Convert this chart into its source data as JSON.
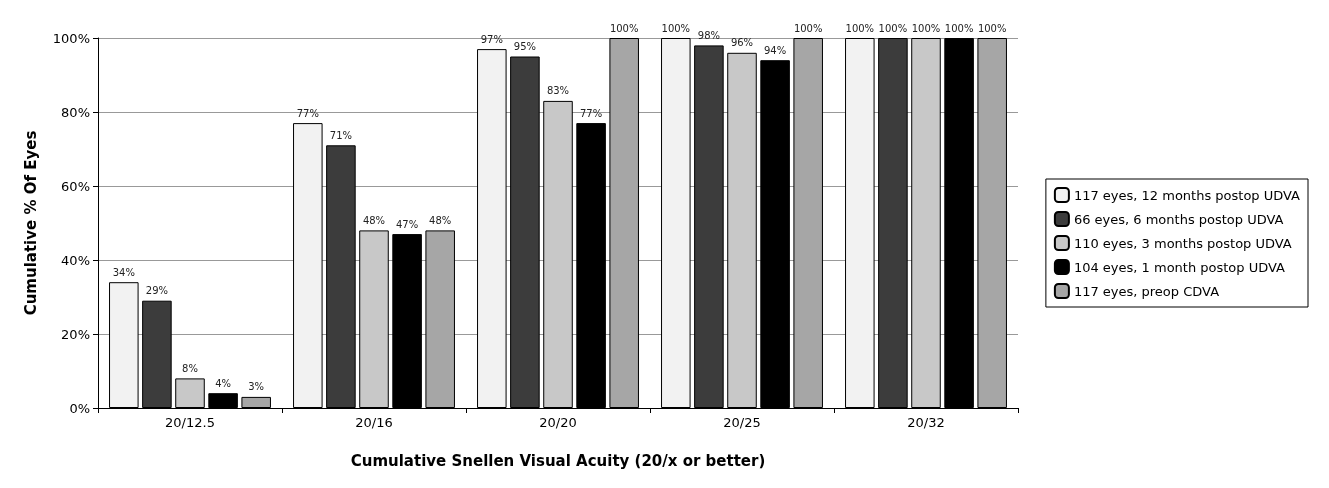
{
  "chart_data": {
    "type": "bar",
    "xlabel": "Cumulative Snellen Visual Acuity (20/x or better)",
    "ylabel": "Cumulative % Of Eyes",
    "categories": [
      "20/12.5",
      "20/16",
      "20/20",
      "20/25",
      "20/32"
    ],
    "series": [
      {
        "name": "117 eyes, 12 months postop UDVA",
        "color": "#f2f2f2",
        "values": [
          34,
          77,
          97,
          100,
          100
        ],
        "value_labels": [
          "34%",
          "77%",
          "97%",
          "100%",
          "100%"
        ]
      },
      {
        "name": "66 eyes, 6 months postop UDVA",
        "color": "#3c3c3c",
        "values": [
          29,
          71,
          95,
          98,
          100
        ],
        "value_labels": [
          "29%",
          "71%",
          "95%",
          "98%",
          "100%"
        ]
      },
      {
        "name": "110 eyes, 3 months postop UDVA",
        "color": "#c8c8c8",
        "values": [
          8,
          48,
          83,
          96,
          100
        ],
        "value_labels": [
          "8%",
          "48%",
          "83%",
          "96%",
          "100%"
        ]
      },
      {
        "name": "104 eyes, 1 month postop UDVA",
        "color": "#000000",
        "values": [
          4,
          47,
          77,
          94,
          100
        ],
        "value_labels": [
          "4%",
          "47%",
          "77%",
          "94%",
          "100%"
        ]
      },
      {
        "name": "117 eyes, preop CDVA",
        "color": "#a6a6a6",
        "values": [
          3,
          48,
          100,
          100,
          100
        ],
        "value_labels": [
          "3%",
          "48%",
          "100%",
          "100%",
          "100%"
        ]
      }
    ],
    "ylim": [
      0,
      100
    ],
    "yticks": [
      {
        "value": 0,
        "label": "0%"
      },
      {
        "value": 20,
        "label": "20%"
      },
      {
        "value": 40,
        "label": "40%"
      },
      {
        "value": 60,
        "label": "60%"
      },
      {
        "value": 80,
        "label": "80%"
      },
      {
        "value": 100,
        "label": "100%"
      }
    ],
    "grid": "y",
    "legend": "right"
  }
}
